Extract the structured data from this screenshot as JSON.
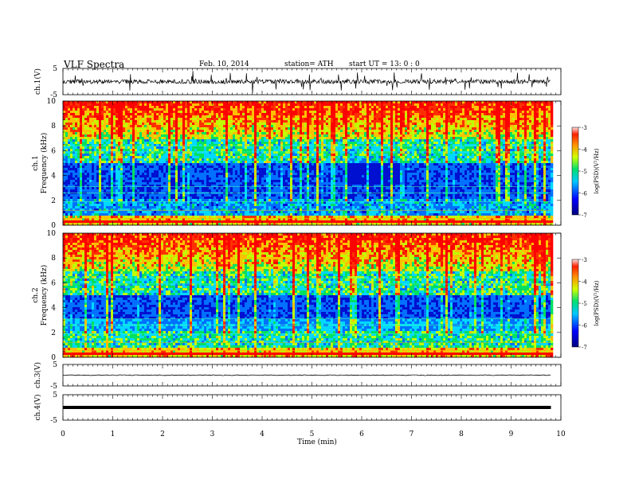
{
  "header": {
    "title": "VLF  Spectra",
    "date": "Feb. 10, 2014",
    "station": "station= ATH",
    "start_ut": "start  UT  =    13: 0   : 0"
  },
  "chart_data": [
    {
      "type": "line",
      "panel": "ch1-waveform",
      "ylabel": "ch.1(V)",
      "y_ticks": [
        "5",
        "-5"
      ],
      "ylim": [
        -5,
        5
      ],
      "xlim": [
        0,
        10
      ],
      "x_data_range": [
        0,
        9.8
      ],
      "baseline": 0,
      "color": "#000000"
    },
    {
      "type": "heatmap",
      "panel": "ch1-spectrogram",
      "ylabel_channel": "ch.1",
      "ylabel": "Frequency  (kHz)",
      "ylim": [
        0,
        10
      ],
      "y_ticks": [
        "0",
        "2",
        "4",
        "6",
        "8",
        "10"
      ],
      "xlim": [
        0,
        10
      ],
      "x_data_range": [
        0,
        9.8
      ],
      "colorbar": {
        "label": "log(PSD)(V²/Hz)",
        "range": [
          -7,
          -3
        ],
        "ticks": [
          "-3",
          "-4",
          "-5",
          "-6",
          "-7"
        ]
      }
    },
    {
      "type": "heatmap",
      "panel": "ch2-spectrogram",
      "ylabel_channel": "ch.2",
      "ylabel": "Frequency  (kHz)",
      "ylim": [
        0,
        10
      ],
      "y_ticks": [
        "0",
        "2",
        "4",
        "6",
        "8",
        "10"
      ],
      "xlim": [
        0,
        10
      ],
      "x_data_range": [
        0,
        9.8
      ],
      "colorbar": {
        "label": "log(PSD)(V²/Hz)",
        "range": [
          -7,
          -3
        ],
        "ticks": [
          "-3",
          "-4",
          "-5",
          "-6",
          "-7"
        ]
      }
    },
    {
      "type": "line",
      "panel": "ch3-waveform",
      "ylabel": "ch.3(V)",
      "y_ticks": [
        "5",
        "-5"
      ],
      "ylim": [
        -5,
        5
      ],
      "xlim": [
        0,
        10
      ],
      "x_data_range": [
        0,
        9.8
      ],
      "baseline": 0,
      "color": "#000000"
    },
    {
      "type": "line",
      "panel": "ch4-waveform",
      "ylabel": "ch.4(V)",
      "y_ticks": [
        "5",
        "-5"
      ],
      "ylim": [
        -5,
        5
      ],
      "xlim": [
        0,
        10
      ],
      "x_data_range": [
        0,
        9.8
      ],
      "baseline": 0,
      "color": "#000000"
    }
  ],
  "x_axis": {
    "label": "Time  (min)",
    "ticks": [
      "0",
      "1",
      "2",
      "3",
      "4",
      "5",
      "6",
      "7",
      "8",
      "9",
      "10"
    ]
  }
}
